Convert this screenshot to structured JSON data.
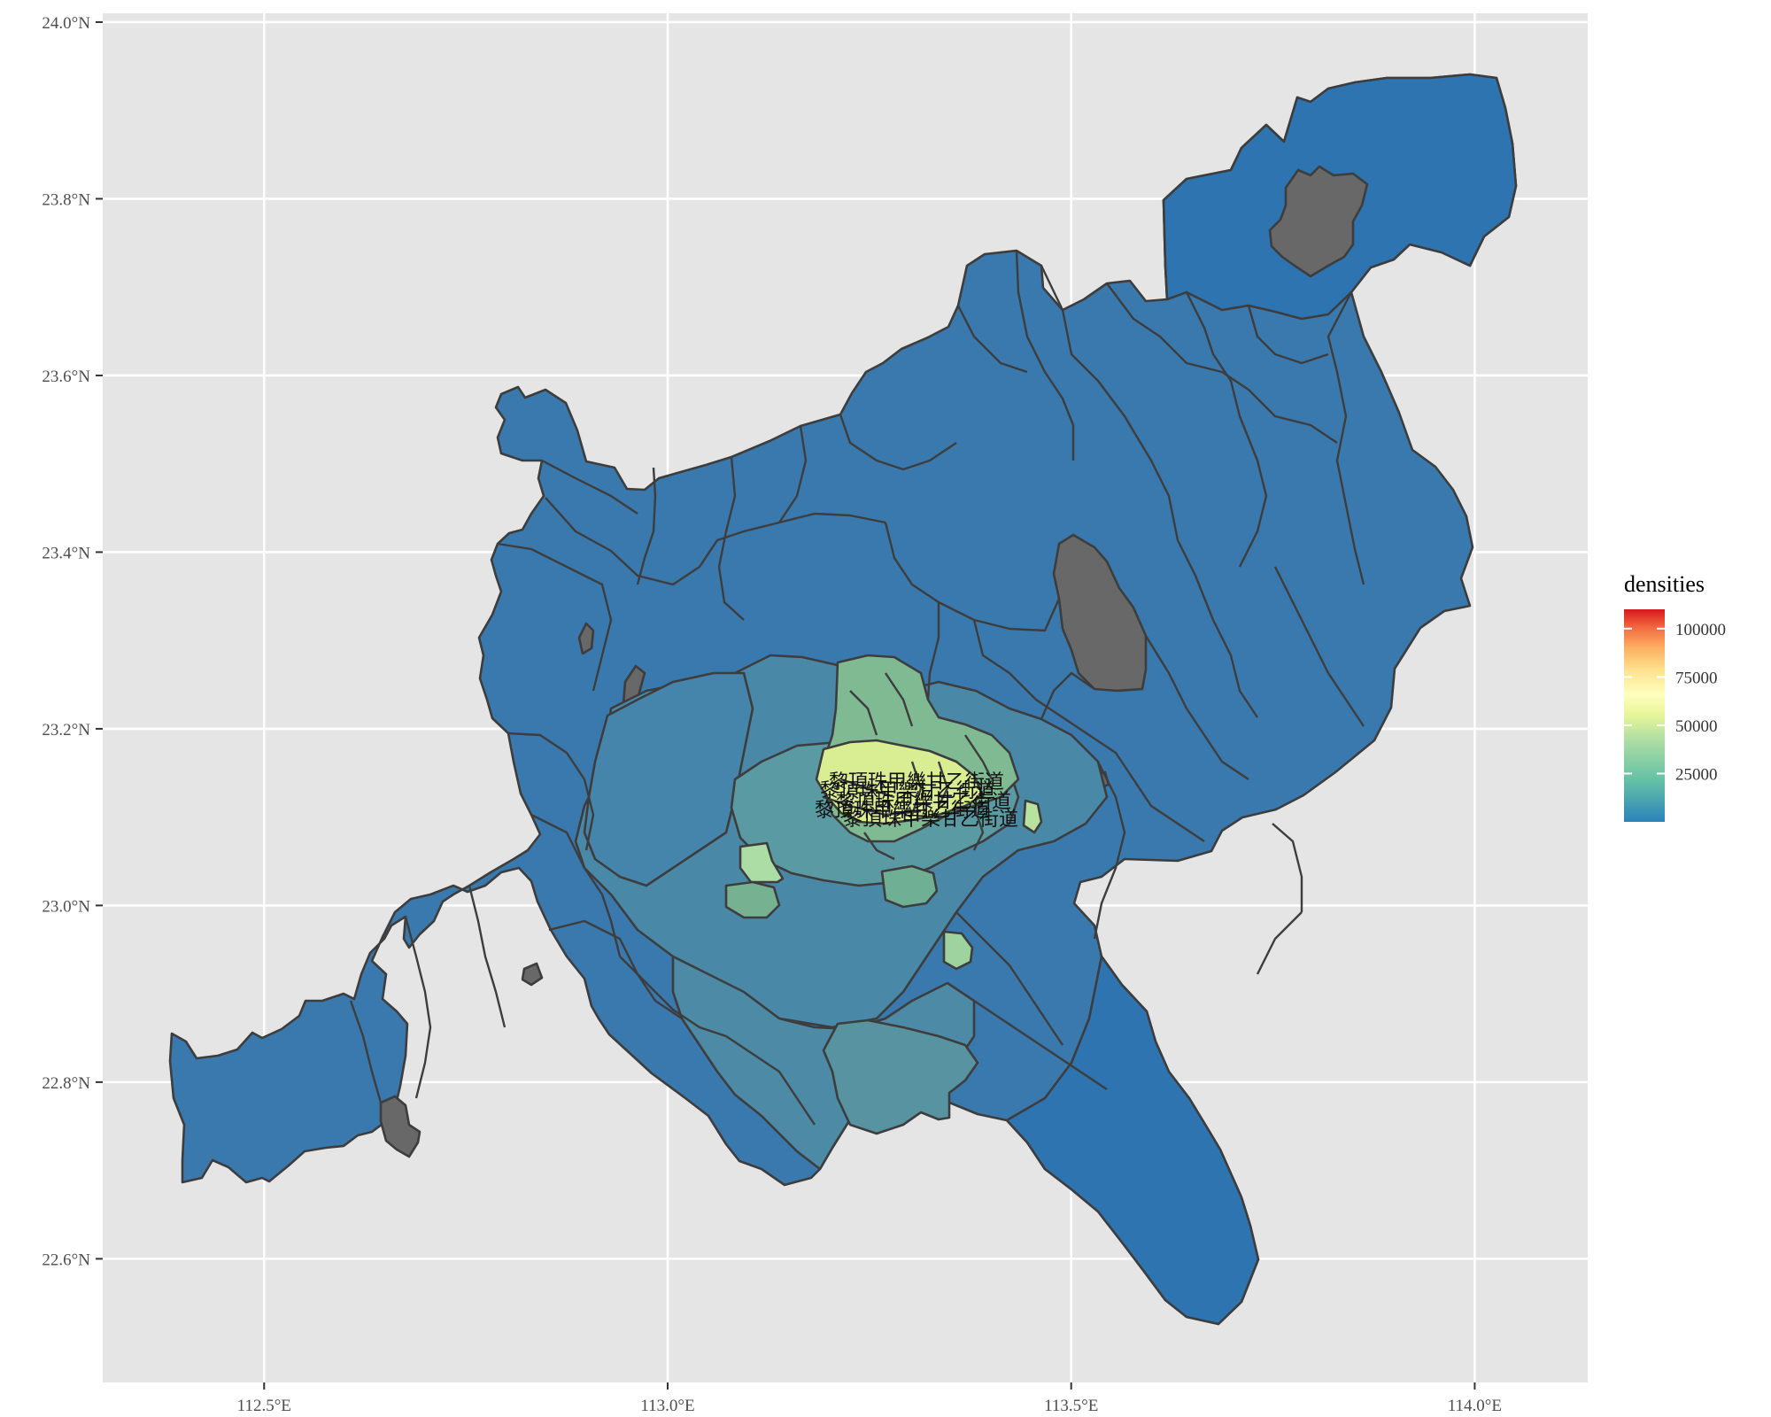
{
  "map": {
    "x_axis": {
      "ticks": [
        {
          "value": 112.5,
          "label": "112.5°E"
        },
        {
          "value": 113.0,
          "label": "113.0°E"
        },
        {
          "value": 113.5,
          "label": "113.5°E"
        },
        {
          "value": 114.0,
          "label": "114.0°E"
        }
      ]
    },
    "y_axis": {
      "ticks": [
        {
          "value": 22.6,
          "label": "22.6°N"
        },
        {
          "value": 22.8,
          "label": "22.8°N"
        },
        {
          "value": 23.0,
          "label": "23.0°N"
        },
        {
          "value": 23.2,
          "label": "23.2°N"
        },
        {
          "value": 23.4,
          "label": "23.4°N"
        },
        {
          "value": 23.6,
          "label": "23.6°N"
        },
        {
          "value": 23.8,
          "label": "23.8°N"
        },
        {
          "value": 24.0,
          "label": "24.0°N"
        }
      ]
    },
    "extent": {
      "lon": [
        112.3,
        114.14
      ],
      "lat": [
        22.46,
        24.01
      ]
    },
    "panel_background": "#e5e5e5",
    "grid": true,
    "na_color": "#686868"
  },
  "legend": {
    "title": "densities",
    "breaks": [
      {
        "value": 25000,
        "label": "25000"
      },
      {
        "value": 50000,
        "label": "50000"
      },
      {
        "value": 75000,
        "label": "75000"
      },
      {
        "value": 100000,
        "label": "100000"
      }
    ],
    "range": [
      0,
      110000
    ],
    "colors": [
      "#d7191c",
      "#f46d43",
      "#fdae61",
      "#fee08b",
      "#ffffbf",
      "#e6f598",
      "#abdda4",
      "#66c2a5",
      "#2b83ba"
    ],
    "placement": "right"
  },
  "labels": {
    "cluster_text": "黎頂珠甲樂甘乙街道"
  }
}
